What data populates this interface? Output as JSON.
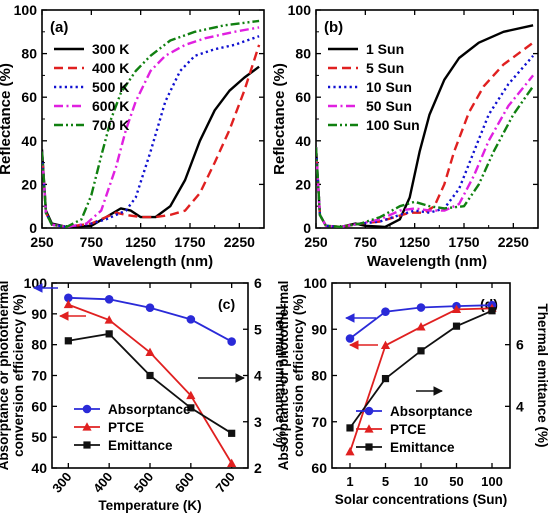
{
  "chart_data": [
    {
      "panel": "(a)",
      "type": "line",
      "xlabel": "Wavelength (nm)",
      "ylabel": "Reflectance (%)",
      "xlim": [
        250,
        2500
      ],
      "ylim": [
        0,
        100
      ],
      "xticks": [
        250,
        750,
        1250,
        1750,
        2250
      ],
      "yticks": [
        0,
        20,
        40,
        60,
        80,
        100
      ],
      "grid": false,
      "legend_position": "top-left",
      "series": [
        {
          "name": "300 K",
          "color": "#000000",
          "dash": "solid",
          "points": [
            [
              250,
              36
            ],
            [
              290,
              8
            ],
            [
              350,
              2
            ],
            [
              500,
              0.5
            ],
            [
              750,
              1
            ],
            [
              900,
              5
            ],
            [
              1050,
              9
            ],
            [
              1150,
              8
            ],
            [
              1250,
              5
            ],
            [
              1400,
              5
            ],
            [
              1550,
              10
            ],
            [
              1700,
              22
            ],
            [
              1850,
              40
            ],
            [
              2000,
              54
            ],
            [
              2150,
              63
            ],
            [
              2300,
              69
            ],
            [
              2450,
              74
            ]
          ]
        },
        {
          "name": "400 K",
          "color": "#e02020",
          "dash": "dash",
          "points": [
            [
              250,
              35
            ],
            [
              290,
              7
            ],
            [
              350,
              1.5
            ],
            [
              500,
              0.5
            ],
            [
              750,
              2
            ],
            [
              900,
              5
            ],
            [
              1000,
              7
            ],
            [
              1100,
              6
            ],
            [
              1250,
              5
            ],
            [
              1400,
              5
            ],
            [
              1550,
              6
            ],
            [
              1700,
              8
            ],
            [
              1850,
              16
            ],
            [
              2000,
              30
            ],
            [
              2150,
              45
            ],
            [
              2300,
              63
            ],
            [
              2450,
              84
            ]
          ]
        },
        {
          "name": "500 K",
          "color": "#1010d0",
          "dash": "dot",
          "points": [
            [
              250,
              35
            ],
            [
              290,
              7
            ],
            [
              350,
              1.5
            ],
            [
              500,
              0.5
            ],
            [
              750,
              2
            ],
            [
              900,
              4
            ],
            [
              1100,
              8
            ],
            [
              1200,
              14
            ],
            [
              1350,
              35
            ],
            [
              1500,
              58
            ],
            [
              1650,
              72
            ],
            [
              1800,
              79
            ],
            [
              2000,
              82
            ],
            [
              2200,
              84
            ],
            [
              2450,
              88
            ]
          ]
        },
        {
          "name": "600 K",
          "color": "#e020e0",
          "dash": "dashdot",
          "points": [
            [
              250,
              35
            ],
            [
              290,
              7
            ],
            [
              350,
              1.5
            ],
            [
              500,
              0.5
            ],
            [
              700,
              2
            ],
            [
              850,
              8
            ],
            [
              1000,
              28
            ],
            [
              1100,
              45
            ],
            [
              1200,
              58
            ],
            [
              1350,
              72
            ],
            [
              1500,
              79
            ],
            [
              1700,
              84
            ],
            [
              1900,
              87
            ],
            [
              2200,
              90
            ],
            [
              2450,
              92
            ]
          ]
        },
        {
          "name": "700 K",
          "color": "#108010",
          "dash": "dashdotdot",
          "points": [
            [
              250,
              35
            ],
            [
              290,
              7
            ],
            [
              350,
              1.5
            ],
            [
              500,
              0.5
            ],
            [
              650,
              4
            ],
            [
              750,
              15
            ],
            [
              850,
              33
            ],
            [
              950,
              50
            ],
            [
              1050,
              62
            ],
            [
              1200,
              72
            ],
            [
              1350,
              79
            ],
            [
              1550,
              86
            ],
            [
              1800,
              90
            ],
            [
              2100,
              93
            ],
            [
              2450,
              95
            ]
          ]
        }
      ]
    },
    {
      "panel": "(b)",
      "type": "line",
      "xlabel": "Wavelength (nm)",
      "ylabel": "Reflectance (%)",
      "xlim": [
        250,
        2500
      ],
      "ylim": [
        0,
        100
      ],
      "xticks": [
        250,
        750,
        1250,
        1750,
        2250
      ],
      "yticks": [
        0,
        20,
        40,
        60,
        80,
        100
      ],
      "grid": false,
      "legend_position": "top-left",
      "series": [
        {
          "name": "1 Sun",
          "color": "#000000",
          "dash": "solid",
          "points": [
            [
              250,
              37
            ],
            [
              290,
              6
            ],
            [
              350,
              1
            ],
            [
              500,
              0.5
            ],
            [
              650,
              2
            ],
            [
              750,
              1
            ],
            [
              950,
              0.5
            ],
            [
              1100,
              4
            ],
            [
              1200,
              14
            ],
            [
              1300,
              35
            ],
            [
              1400,
              52
            ],
            [
              1550,
              68
            ],
            [
              1700,
              78
            ],
            [
              1900,
              85
            ],
            [
              2150,
              90
            ],
            [
              2450,
              93
            ]
          ]
        },
        {
          "name": "5 Sun",
          "color": "#e02020",
          "dash": "dash",
          "points": [
            [
              250,
              37
            ],
            [
              290,
              6
            ],
            [
              350,
              1
            ],
            [
              500,
              0.5
            ],
            [
              700,
              2
            ],
            [
              900,
              3
            ],
            [
              1050,
              5
            ],
            [
              1200,
              7
            ],
            [
              1350,
              7
            ],
            [
              1450,
              10
            ],
            [
              1550,
              20
            ],
            [
              1650,
              35
            ],
            [
              1800,
              53
            ],
            [
              1950,
              65
            ],
            [
              2150,
              75
            ],
            [
              2450,
              85
            ]
          ]
        },
        {
          "name": "10 Sun",
          "color": "#1010d0",
          "dash": "dot",
          "points": [
            [
              250,
              37
            ],
            [
              290,
              6
            ],
            [
              350,
              1
            ],
            [
              500,
              0.5
            ],
            [
              700,
              2
            ],
            [
              900,
              3
            ],
            [
              1100,
              6
            ],
            [
              1250,
              8
            ],
            [
              1400,
              7
            ],
            [
              1550,
              9
            ],
            [
              1700,
              18
            ],
            [
              1850,
              35
            ],
            [
              2000,
              52
            ],
            [
              2200,
              66
            ],
            [
              2450,
              79
            ]
          ]
        },
        {
          "name": "50 Sun",
          "color": "#e020e0",
          "dash": "dashdot",
          "points": [
            [
              250,
              37
            ],
            [
              290,
              6
            ],
            [
              350,
              1
            ],
            [
              500,
              0.5
            ],
            [
              700,
              2
            ],
            [
              900,
              4
            ],
            [
              1100,
              8
            ],
            [
              1250,
              9
            ],
            [
              1400,
              8
            ],
            [
              1550,
              8
            ],
            [
              1700,
              11
            ],
            [
              1850,
              24
            ],
            [
              2000,
              40
            ],
            [
              2200,
              56
            ],
            [
              2450,
              70
            ]
          ]
        },
        {
          "name": "100 Sun",
          "color": "#108010",
          "dash": "dashdotdot",
          "points": [
            [
              250,
              37
            ],
            [
              290,
              6
            ],
            [
              350,
              1
            ],
            [
              500,
              0.5
            ],
            [
              700,
              2
            ],
            [
              900,
              5
            ],
            [
              1100,
              10
            ],
            [
              1250,
              12
            ],
            [
              1400,
              10
            ],
            [
              1550,
              9
            ],
            [
              1750,
              10
            ],
            [
              1900,
              20
            ],
            [
              2050,
              35
            ],
            [
              2250,
              52
            ],
            [
              2450,
              65
            ]
          ]
        }
      ]
    },
    {
      "panel": "(c)",
      "type": "line",
      "xlabel": "Temperature (K)",
      "ylabel": "Absorptance or photothermal conversion efficiency (%)",
      "ylabel_lines": [
        "Absorptance or photothermal",
        "conversion efficiency (%)"
      ],
      "y2label": "Thermal emittance (%)",
      "xlim": [
        260,
        740
      ],
      "ylim": [
        40,
        100
      ],
      "y2lim": [
        2,
        6
      ],
      "xticks": [
        300,
        400,
        500,
        600,
        700
      ],
      "yticks": [
        40,
        50,
        60,
        70,
        80,
        90,
        100
      ],
      "y2ticks": [
        2,
        3,
        4,
        5,
        6
      ],
      "grid": false,
      "legend_position": "bottom-left",
      "series": [
        {
          "name": "Absorptance",
          "color": "#2a2ad8",
          "marker": "circle",
          "axis": "left",
          "x": [
            300,
            400,
            500,
            600,
            700
          ],
          "values": [
            95.2,
            94.7,
            92.0,
            88.2,
            81.0
          ]
        },
        {
          "name": "PTCE",
          "color": "#e02020",
          "marker": "triangle",
          "axis": "left",
          "x": [
            300,
            400,
            500,
            600,
            700
          ],
          "values": [
            93.0,
            88.0,
            77.5,
            63.5,
            41.5
          ]
        },
        {
          "name": "Emittance",
          "color": "#111111",
          "marker": "square",
          "axis": "right",
          "x": [
            300,
            400,
            500,
            600,
            700
          ],
          "values": [
            4.75,
            4.9,
            4.0,
            3.3,
            2.75
          ]
        }
      ]
    },
    {
      "panel": "(d)",
      "type": "line",
      "xlabel": "Solar concentrations (Sun)",
      "ylabel": "Absorptance or photothermal conversion efficiency (%)",
      "ylabel_lines": [
        "Absorptance or photothermal",
        "conversion efficiency (%)"
      ],
      "y2label": "Thermal emittance (%)",
      "categories": [
        "1",
        "5",
        "10",
        "50",
        "100"
      ],
      "ylim": [
        60,
        100
      ],
      "y2lim": [
        2,
        8
      ],
      "yticks": [
        60,
        70,
        80,
        90,
        100
      ],
      "y2ticks": [
        4,
        6
      ],
      "grid": false,
      "legend_position": "bottom-right",
      "series": [
        {
          "name": "Absorptance",
          "color": "#2a2ad8",
          "marker": "circle",
          "axis": "left",
          "values": [
            88.0,
            93.8,
            94.7,
            95.0,
            95.2
          ]
        },
        {
          "name": "PTCE",
          "color": "#e02020",
          "marker": "triangle",
          "axis": "left",
          "values": [
            63.5,
            86.5,
            90.5,
            94.3,
            94.5
          ]
        },
        {
          "name": "Emittance",
          "color": "#111111",
          "marker": "square",
          "axis": "right",
          "values": [
            3.3,
            4.9,
            5.8,
            6.6,
            7.1
          ]
        }
      ]
    }
  ]
}
